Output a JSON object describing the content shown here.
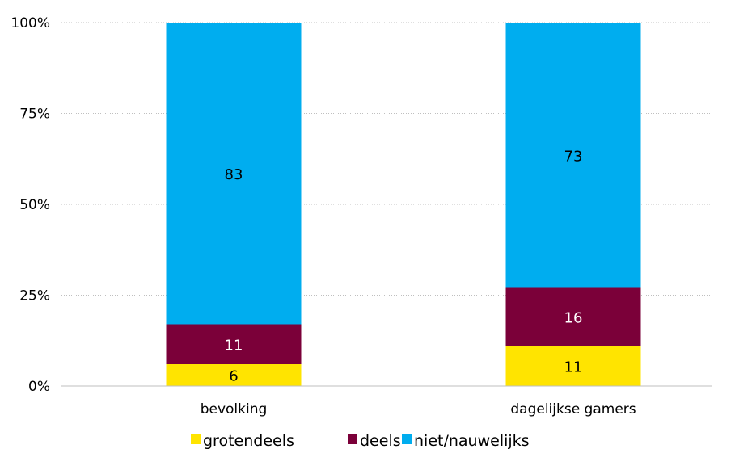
{
  "chart_data": {
    "type": "bar",
    "stacked": true,
    "categories": [
      "bevolking",
      "dagelijkse gamers"
    ],
    "series": [
      {
        "name": "grotendeels",
        "values": [
          6,
          11
        ],
        "color": "#FFE400",
        "label_color": "#000000"
      },
      {
        "name": "deels",
        "values": [
          11,
          16
        ],
        "color": "#7B0039",
        "label_color": "#ffffff"
      },
      {
        "name": "niet/nauwelijks",
        "values": [
          83,
          73
        ],
        "color": "#00ADEF",
        "label_color": "#000000"
      }
    ],
    "y_ticks": [
      "0%",
      "25%",
      "50%",
      "75%",
      "100%"
    ],
    "ylim": [
      0,
      100
    ],
    "grid": true,
    "gridline_color": "#BFBFBF",
    "legend_position": "bottom",
    "title": "",
    "xlabel": "",
    "ylabel": ""
  }
}
